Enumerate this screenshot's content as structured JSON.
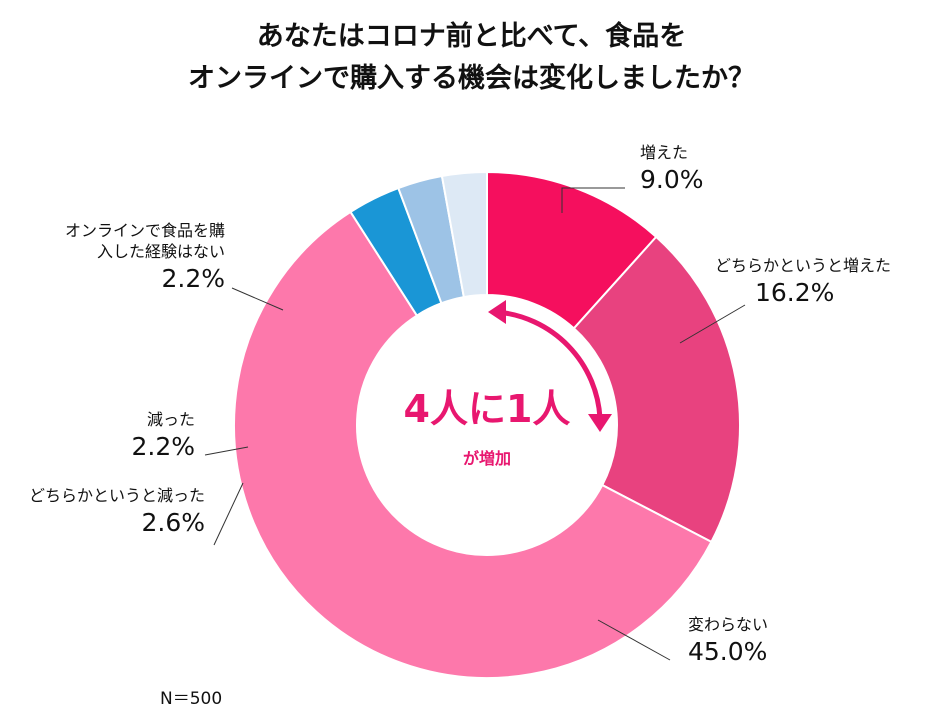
{
  "chart_data": {
    "type": "donut",
    "title": [
      "あなたはコロナ前と比べて、食品を",
      "オンラインで購入する機会は変化しましたか？"
    ],
    "categories": [
      "増えた",
      "どちらかというと増えた",
      "変わらない",
      "どちらかというと減った",
      "減った",
      "オンラインで食品を購入した経験はない"
    ],
    "values": [
      9.0,
      16.2,
      45.0,
      2.6,
      2.2,
      2.2
    ],
    "value_labels": [
      "9.0%",
      "16.2%",
      "45.0%",
      "2.6%",
      "2.2%",
      "2.2%"
    ],
    "colors": [
      "#f50f5e",
      "#e8427f",
      "#fd78ab",
      "#1a96d6",
      "#9dc3e6",
      "#dde9f5"
    ],
    "annotations": [
      "4人に1人",
      "が増加"
    ],
    "note": "N＝500"
  }
}
